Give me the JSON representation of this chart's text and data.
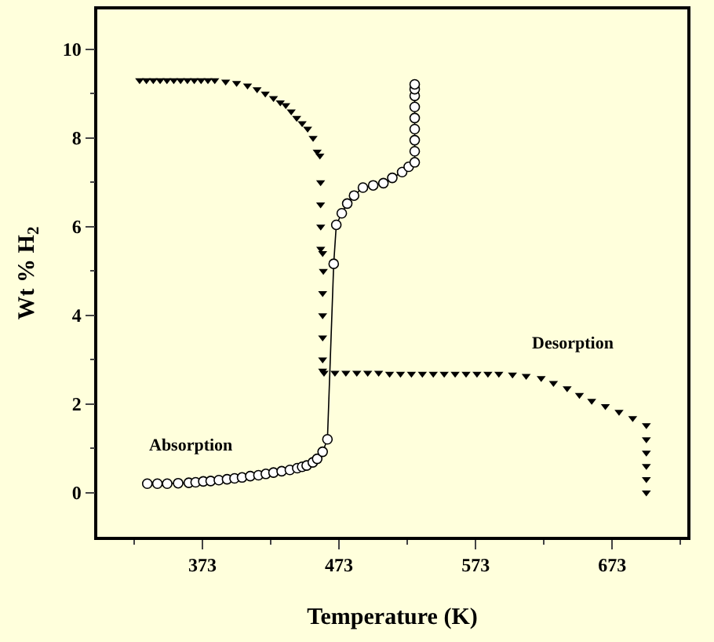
{
  "chart_data": {
    "type": "scatter",
    "xlabel": "Temperature (K)",
    "ylabel": "Wt % H$_{2}$",
    "xlim": [
      296,
      728
    ],
    "ylim": [
      -1,
      10.9
    ],
    "xticks": [
      {
        "value": 323,
        "label": null
      },
      373,
      {
        "value": 423,
        "label": null
      },
      473,
      {
        "value": 523,
        "label": null
      },
      573,
      {
        "value": 623,
        "label": null
      },
      673,
      {
        "value": 723,
        "label": null
      }
    ],
    "yticks": [
      0,
      {
        "value": 1,
        "label": null
      },
      2,
      {
        "value": 3,
        "label": null
      },
      4,
      {
        "value": 5,
        "label": null
      },
      6,
      {
        "value": 7,
        "label": null
      },
      8,
      {
        "value": 9,
        "label": null
      },
      10
    ],
    "grid": false,
    "legend": false,
    "series": [
      {
        "name": "Desorption",
        "color": "#000000",
        "marker": "triangle",
        "x": [
          327,
          332,
          337,
          342,
          347,
          352,
          357,
          362,
          367,
          372,
          377,
          382,
          390,
          398,
          406,
          413,
          419,
          425,
          430,
          434,
          438,
          442,
          446,
          450,
          454,
          457,
          459,
          459.5,
          459.5,
          459.6,
          459.6,
          461,
          461.5,
          461,
          461,
          461,
          461,
          461,
          462,
          470,
          478,
          486,
          494,
          502,
          510,
          518,
          526,
          534,
          542,
          550,
          558,
          566,
          574,
          582,
          590,
          600,
          610,
          621,
          630,
          640,
          649,
          658,
          668,
          678,
          688,
          698,
          698,
          698,
          698,
          698,
          698
        ],
        "values": [
          9.3,
          9.3,
          9.3,
          9.3,
          9.3,
          9.3,
          9.3,
          9.3,
          9.3,
          9.3,
          9.3,
          9.3,
          9.27,
          9.24,
          9.18,
          9.1,
          9.0,
          8.9,
          8.8,
          8.74,
          8.6,
          8.45,
          8.33,
          8.21,
          8.0,
          7.69,
          7.6,
          7.0,
          6.5,
          6.0,
          5.5,
          5.4,
          5.0,
          4.5,
          4.0,
          3.5,
          3.0,
          2.75,
          2.7,
          2.7,
          2.7,
          2.7,
          2.7,
          2.7,
          2.68,
          2.68,
          2.68,
          2.68,
          2.68,
          2.68,
          2.68,
          2.68,
          2.68,
          2.68,
          2.68,
          2.66,
          2.63,
          2.58,
          2.47,
          2.35,
          2.2,
          2.07,
          1.95,
          1.82,
          1.68,
          1.52,
          1.2,
          0.9,
          0.6,
          0.3,
          0.0
        ]
      },
      {
        "name": "Absorption",
        "type": "line",
        "color": "#000000",
        "marker": "circle",
        "line_style": "solid",
        "x": [
          332.6,
          340,
          347.2,
          355.2,
          363,
          368,
          373.6,
          379,
          385,
          391,
          396.5,
          402,
          408,
          414,
          419.4,
          425,
          431,
          437,
          442.4,
          446,
          449.3,
          453.8,
          457,
          461,
          464.5,
          469.1,
          471,
          475,
          479,
          484,
          490.5,
          498,
          505.5,
          512,
          519.2,
          524,
          528.4,
          528.4,
          528.4,
          528.4,
          528.4,
          528.4,
          528.4,
          528.4,
          528.4
        ],
        "values": [
          0.2,
          0.2,
          0.2,
          0.21,
          0.22,
          0.23,
          0.25,
          0.26,
          0.28,
          0.3,
          0.32,
          0.34,
          0.37,
          0.39,
          0.42,
          0.45,
          0.48,
          0.51,
          0.55,
          0.58,
          0.61,
          0.68,
          0.76,
          0.92,
          1.2,
          5.16,
          6.04,
          6.3,
          6.52,
          6.7,
          6.88,
          6.93,
          6.98,
          7.1,
          7.23,
          7.35,
          7.45,
          7.7,
          7.95,
          8.2,
          8.45,
          8.7,
          8.95,
          9.1,
          9.21
        ]
      }
    ],
    "tick_labels": "xy"
  }
}
